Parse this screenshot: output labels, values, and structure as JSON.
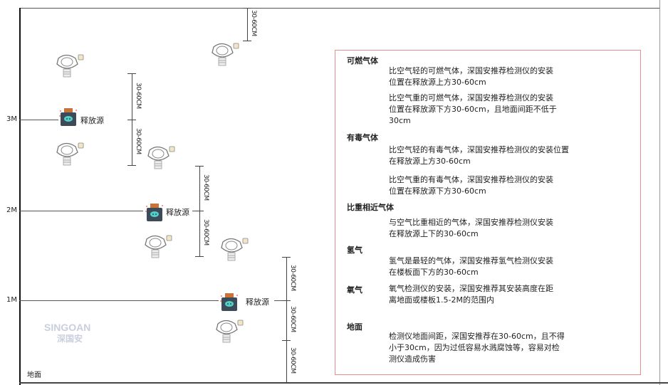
{
  "watermark": {
    "brand": "SINGOAN",
    "cn": "深国安"
  },
  "levels": [
    "3M",
    "2M",
    "1M"
  ],
  "floor_label": "地面",
  "source_label": "释放源",
  "dimension_label": "30-60CM",
  "colors": {
    "box_border": "#e98c8c",
    "source_body": "#3d4a57",
    "source_face": "#4fd0c8",
    "source_lid": "#c8733a"
  },
  "info": [
    {
      "heading": "可燃气体",
      "paragraphs": [
        [
          "比空气轻的可燃气体，深国安推荐检测仪的安装",
          "位置在释放源上方30-60cm"
        ],
        [
          "比空气重的可燃气体，深国安推荐检测仪的安装",
          "位置在释放源下方30-60cm，且地面间距不低于",
          "30cm"
        ]
      ]
    },
    {
      "heading": "有毒气体",
      "paragraphs": [
        [
          "比空气轻的有毒气体，深国安推荐检测仪的安装位置",
          "在释放源上方30-60cm"
        ],
        [
          "比空气重的有毒气体，深国安推荐检测仪的安装",
          "位置在释放源下方30-60cm"
        ]
      ]
    },
    {
      "heading": "比重相近气体",
      "paragraphs": [
        [
          "与空气比重相近的气体，深国安推荐检测仪安装",
          "在释放源上下的30-60cm"
        ]
      ]
    },
    {
      "heading": "氢气",
      "paragraphs": [
        [
          "氢气是最轻的气体，深国安推荐氢气检测仪安装",
          "在楼板面下方的30-60cm"
        ]
      ]
    },
    {
      "heading": "氧气",
      "paragraphs": [
        [
          "氧气检测仪的安装，深国安推荐其安装高度在距",
          "离地面或楼板1.5-2M的范围内"
        ]
      ]
    },
    {
      "heading": "地面",
      "paragraphs": [
        [
          "检测仪地面间距，深国安推荐在30-60cm，且不得",
          "小于30cm，因为过低容易水溅腐蚀等，容易对检",
          "测仪造成伤害"
        ]
      ]
    }
  ]
}
